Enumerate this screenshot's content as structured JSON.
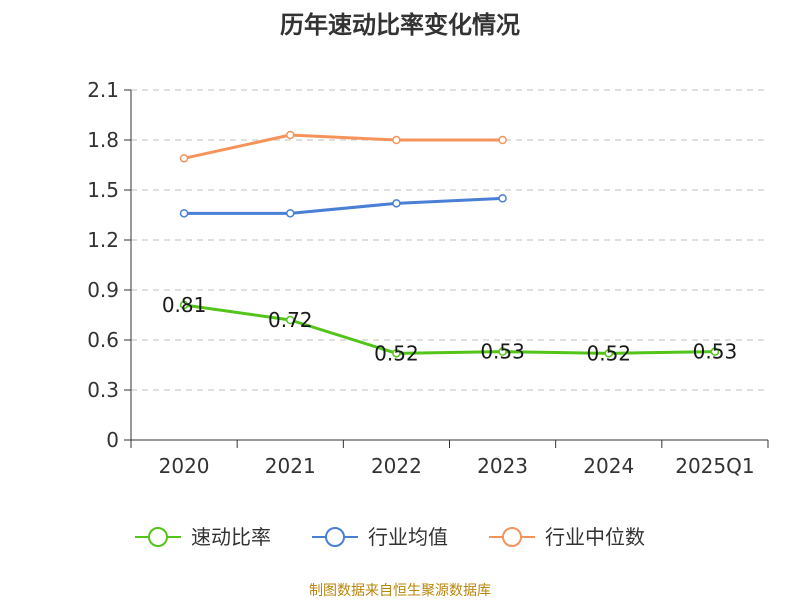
{
  "chart_data": {
    "type": "line",
    "title": "历年速动比率变化情况",
    "categories": [
      "2020",
      "2021",
      "2022",
      "2023",
      "2024",
      "2025Q1"
    ],
    "ylim": [
      0,
      2.1
    ],
    "yticks": [
      "0",
      "0.3",
      "0.6",
      "0.9",
      "1.2",
      "1.5",
      "1.8",
      "2.1"
    ],
    "ytick_values": [
      0,
      0.3,
      0.6,
      0.9,
      1.2,
      1.5,
      1.8,
      2.1
    ],
    "grid": true,
    "legend_position": "bottom",
    "series": [
      {
        "name": "速动比率",
        "color": "#52c41a",
        "values": [
          0.81,
          0.72,
          0.52,
          0.53,
          0.52,
          0.53
        ],
        "labels": [
          "0.81",
          "0.72",
          "0.52",
          "0.53",
          "0.52",
          "0.53"
        ]
      },
      {
        "name": "行业均值",
        "color": "#4a7fd6",
        "values": [
          1.36,
          1.36,
          1.42,
          1.45,
          null,
          null
        ]
      },
      {
        "name": "行业中位数",
        "color": "#f5935a",
        "values": [
          1.69,
          1.83,
          1.8,
          1.8,
          null,
          null
        ]
      }
    ],
    "source": "制图数据来自恒生聚源数据库"
  }
}
